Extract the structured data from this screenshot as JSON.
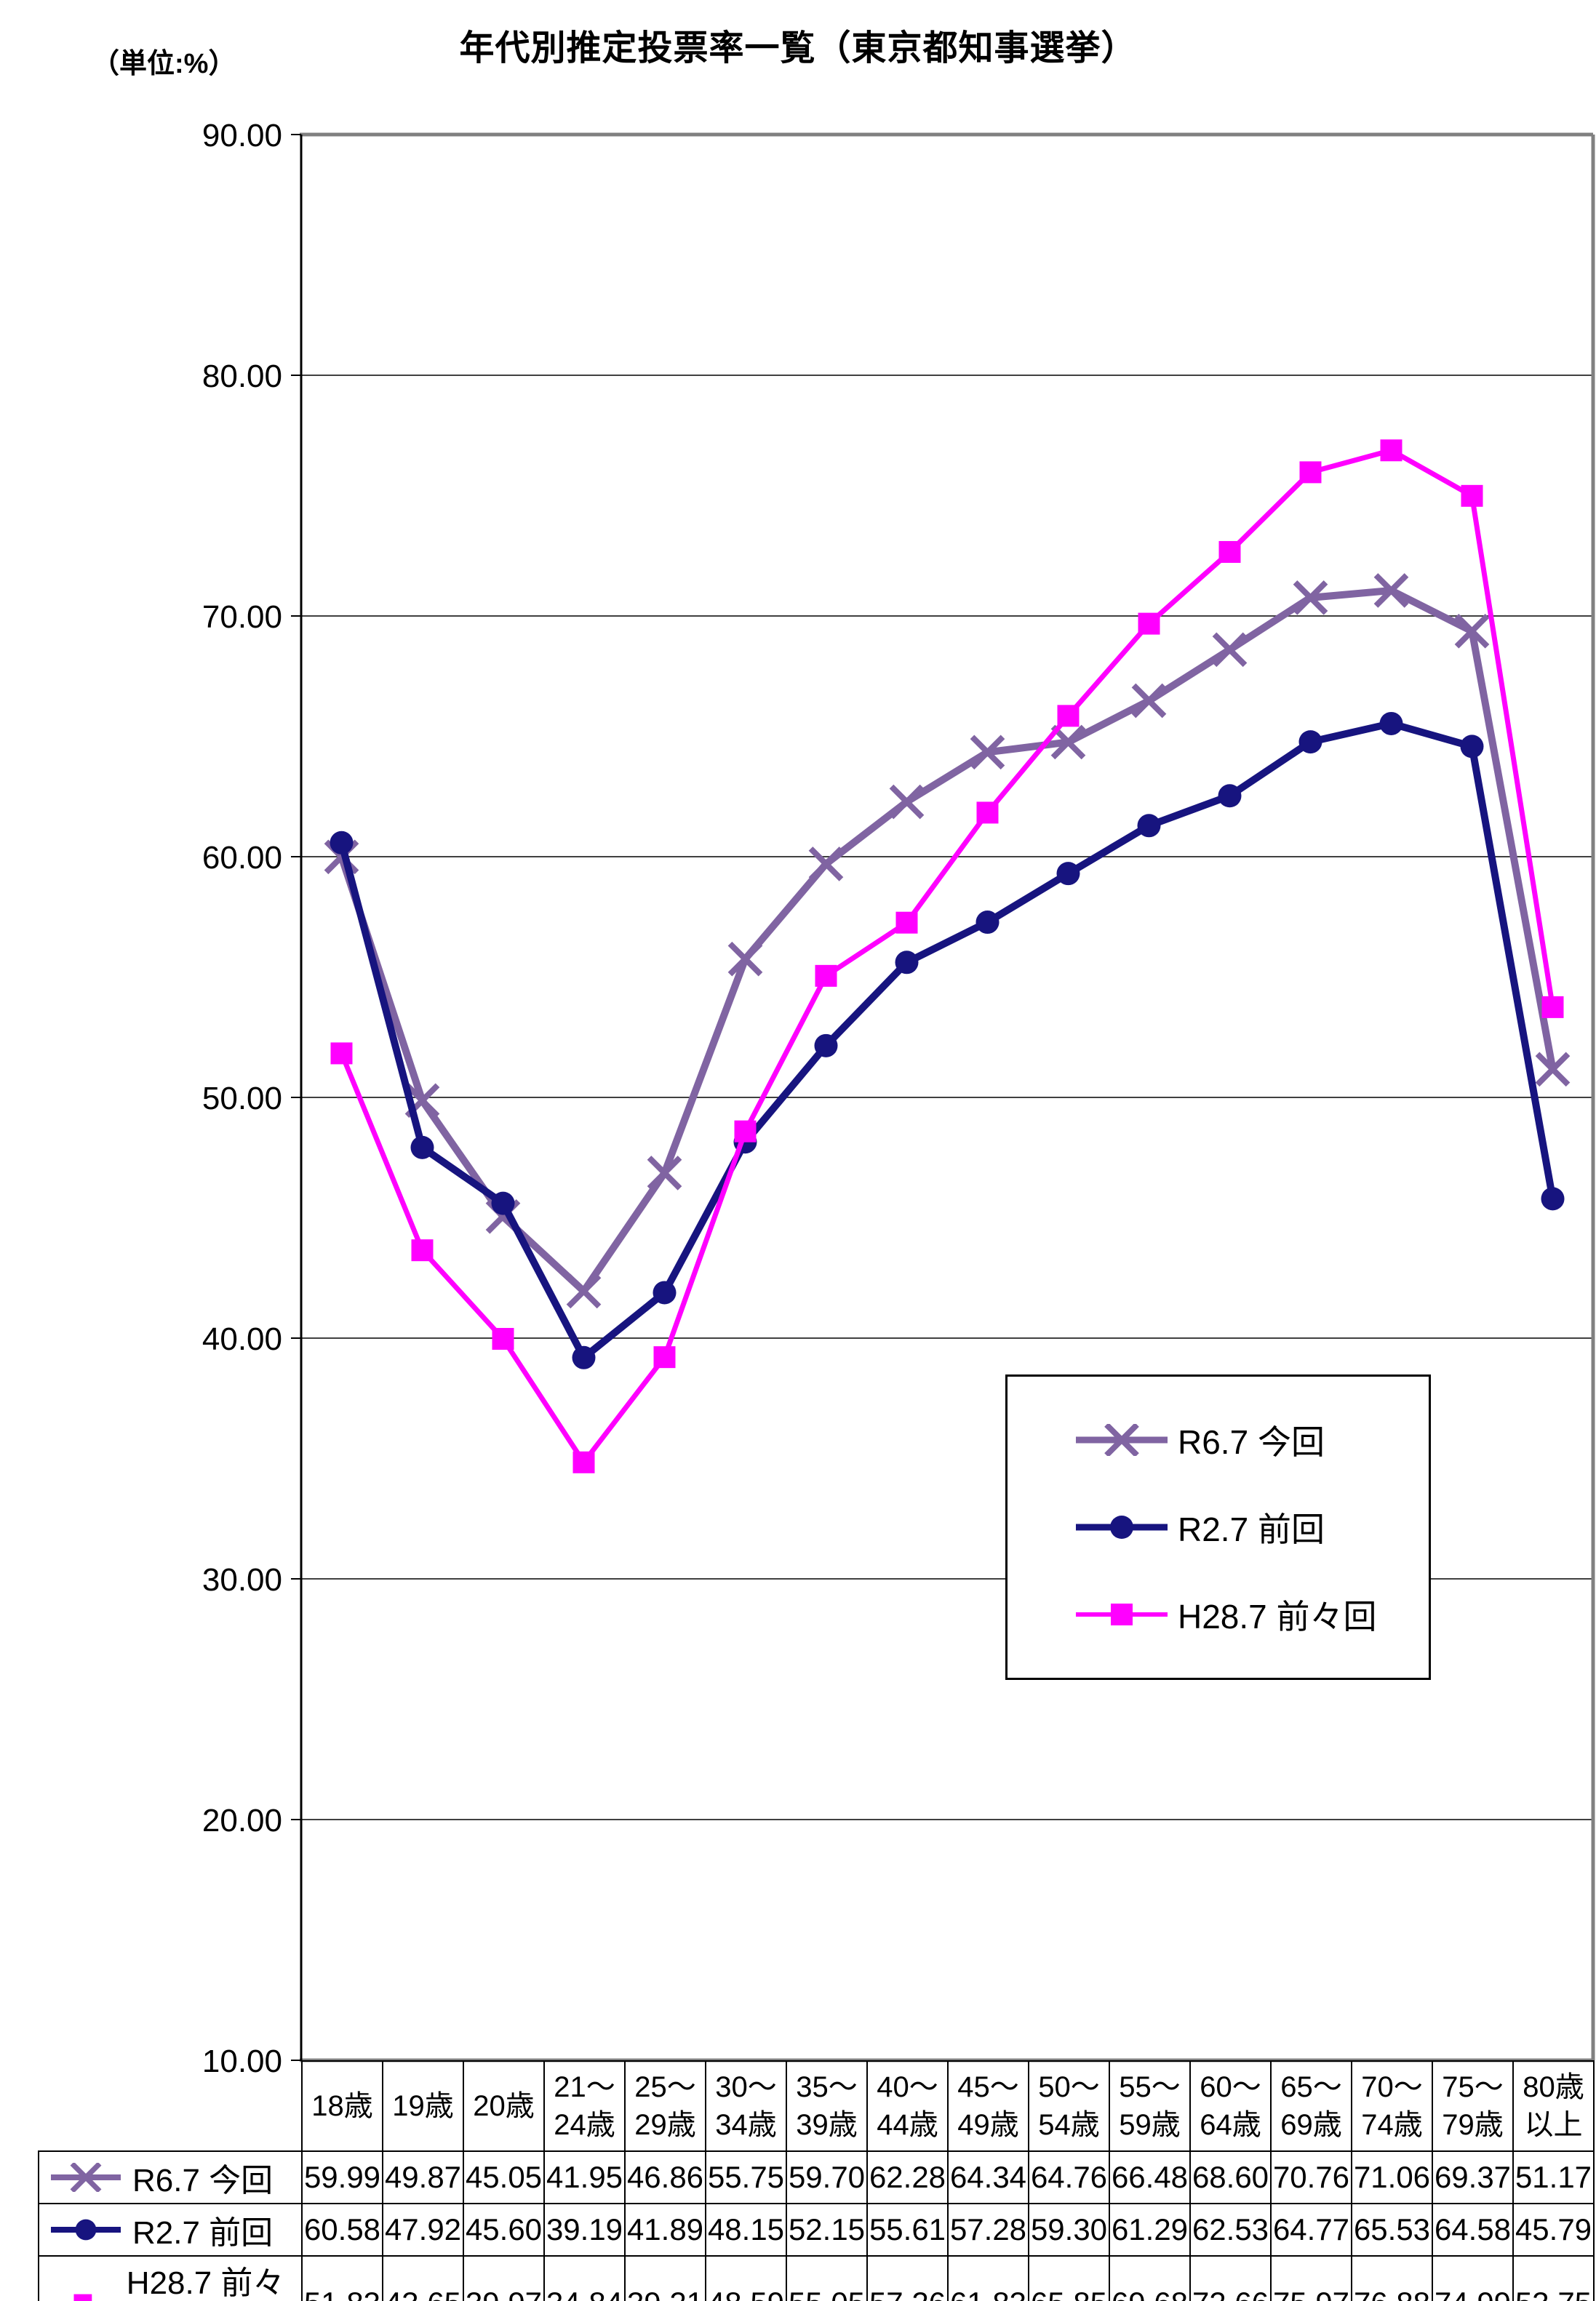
{
  "header": {
    "unit_label": "（単位:%）",
    "title": "年代別推定投票率一覧（東京都知事選挙）"
  },
  "chart_data": {
    "type": "line",
    "title": "年代別推定投票率一覧（東京都知事選挙）",
    "unit": "%",
    "ylim": [
      10,
      90
    ],
    "ytick_step": 10,
    "grid": true,
    "legend_position": "inside-right",
    "categories": [
      "18歳",
      "19歳",
      "20歳",
      "21～24歳",
      "25～29歳",
      "30～34歳",
      "35～39歳",
      "40～44歳",
      "45～49歳",
      "50～54歳",
      "55～59歳",
      "60～64歳",
      "65～69歳",
      "70～74歳",
      "75～79歳",
      "80歳以上"
    ],
    "series": [
      {
        "name": "R6.7 今回",
        "color": "#8064A2",
        "marker": "x",
        "values": [
          59.99,
          49.87,
          45.05,
          41.95,
          46.86,
          55.75,
          59.7,
          62.28,
          64.34,
          64.76,
          66.48,
          68.6,
          70.76,
          71.06,
          69.37,
          51.17
        ]
      },
      {
        "name": "R2.7 前回",
        "color": "#17147F",
        "marker": "circle",
        "values": [
          60.58,
          47.92,
          45.6,
          39.19,
          41.89,
          48.15,
          52.15,
          55.61,
          57.28,
          59.3,
          61.29,
          62.53,
          64.77,
          65.53,
          64.58,
          45.79
        ]
      },
      {
        "name": "H28.7 前々回",
        "color": "#FF00FF",
        "marker": "square",
        "values": [
          51.83,
          43.65,
          39.97,
          34.84,
          39.21,
          48.59,
          55.05,
          57.26,
          61.83,
          65.85,
          69.68,
          72.66,
          75.97,
          76.88,
          74.99,
          53.75
        ]
      }
    ]
  },
  "y_axis": {
    "labels": [
      "90.00",
      "80.00",
      "70.00",
      "60.00",
      "50.00",
      "40.00",
      "30.00",
      "20.00",
      "10.00"
    ]
  },
  "table": {
    "headers": [
      "18歳",
      "19歳",
      "20歳",
      "21～\n24歳",
      "25～\n29歳",
      "30～\n34歳",
      "35～\n39歳",
      "40～\n44歳",
      "45～\n49歳",
      "50～\n54歳",
      "55～\n59歳",
      "60～\n64歳",
      "65～\n69歳",
      "70～\n74歳",
      "75～\n79歳",
      "80歳\n以上"
    ]
  },
  "colors": {
    "plot_border": "#808080",
    "gridline": "#404040",
    "axis": "#000000",
    "table_border": "#000000"
  }
}
